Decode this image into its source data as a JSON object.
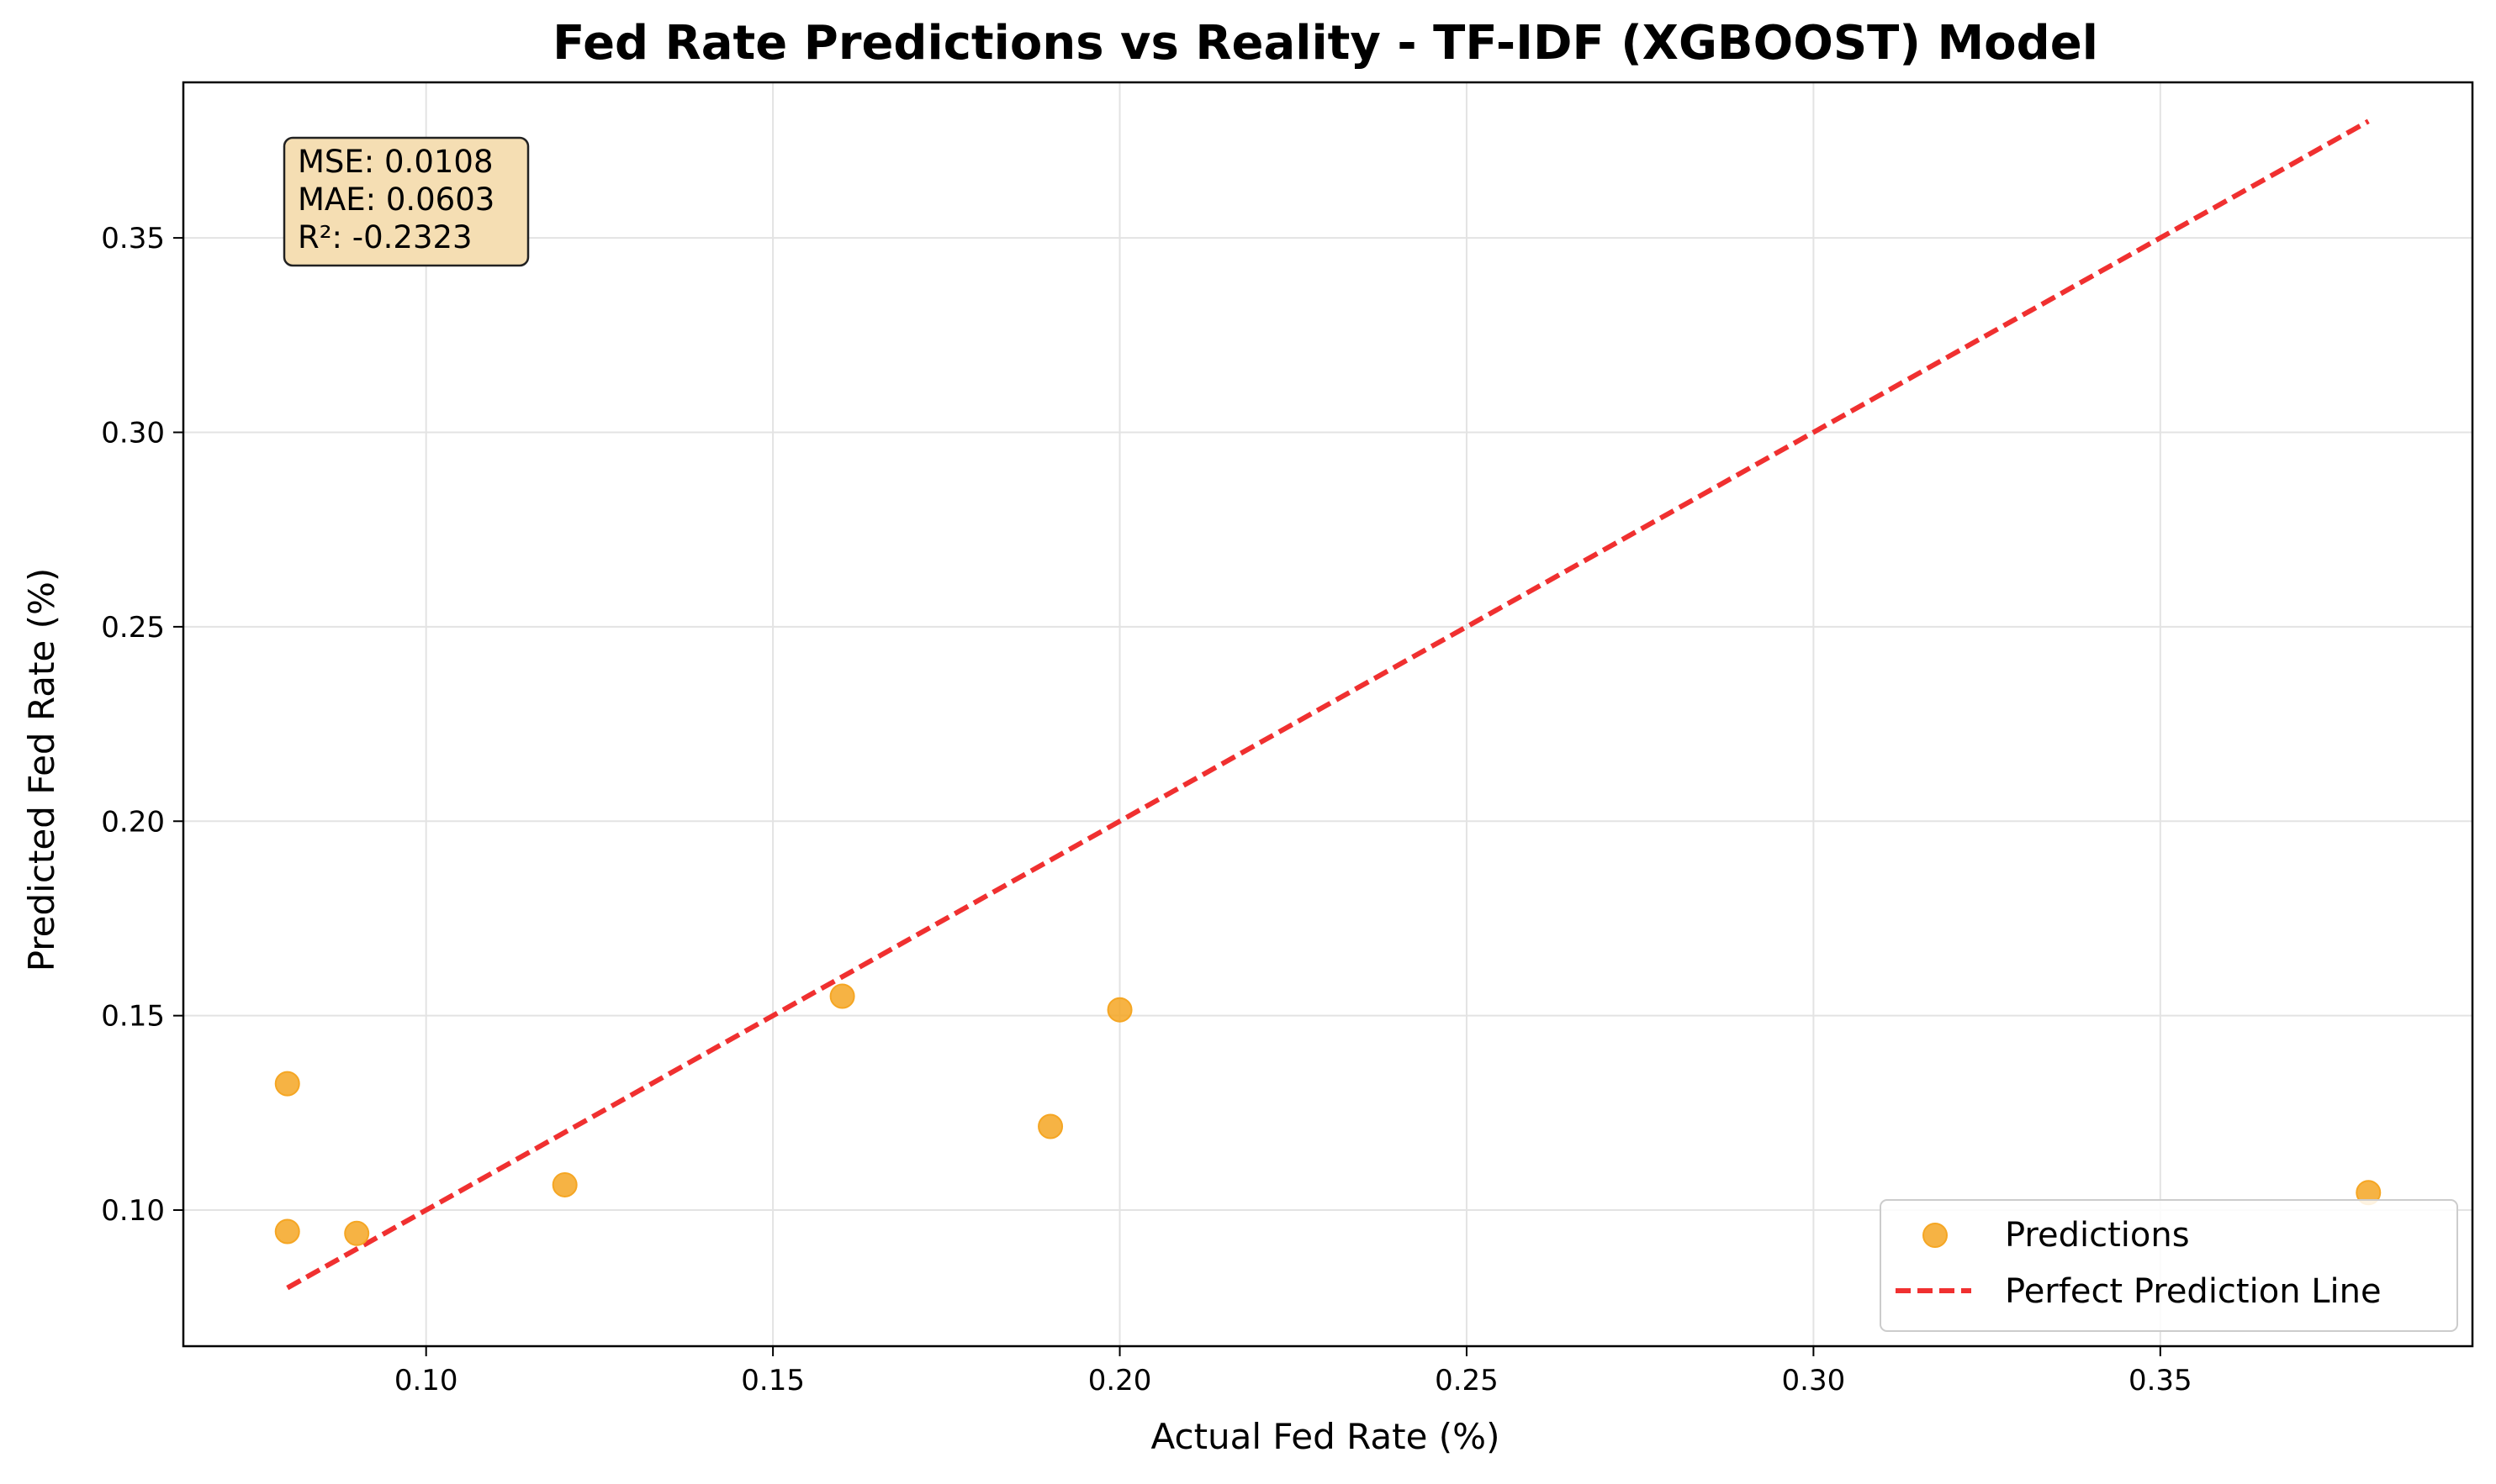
{
  "chart_data": {
    "type": "scatter",
    "title": "Fed Rate Predictions vs Reality - TF-IDF (XGBOOST) Model",
    "xlabel": "Actual Fed Rate (%)",
    "ylabel": "Predicted Fed Rate (%)",
    "xlim": [
      0.065,
      0.395
    ],
    "ylim": [
      0.065,
      0.39
    ],
    "xticks": [
      0.1,
      0.15,
      0.2,
      0.25,
      0.3,
      0.35
    ],
    "xtick_labels": [
      "0.10",
      "0.15",
      "0.20",
      "0.25",
      "0.30",
      "0.35"
    ],
    "yticks": [
      0.1,
      0.15,
      0.2,
      0.25,
      0.3,
      0.35
    ],
    "ytick_labels": [
      "0.10",
      "0.15",
      "0.20",
      "0.25",
      "0.30",
      "0.35"
    ],
    "grid": true,
    "legend_position": "bottom-right",
    "series": [
      {
        "name": "Predictions",
        "kind": "scatter",
        "color": "#f5a623",
        "x": [
          0.08,
          0.08,
          0.09,
          0.12,
          0.16,
          0.19,
          0.2,
          0.38
        ],
        "y": [
          0.1325,
          0.0945,
          0.094,
          0.1065,
          0.155,
          0.1215,
          0.1515,
          0.1045
        ]
      },
      {
        "name": "Perfect Prediction Line",
        "kind": "line",
        "style": "dashed",
        "color": "#f03030",
        "x": [
          0.08,
          0.38
        ],
        "y": [
          0.08,
          0.38
        ]
      }
    ],
    "annotation": {
      "lines": [
        "MSE: 0.0108",
        "MAE: 0.0603",
        "R²: -0.2323"
      ],
      "background": "#f5deb3"
    }
  }
}
